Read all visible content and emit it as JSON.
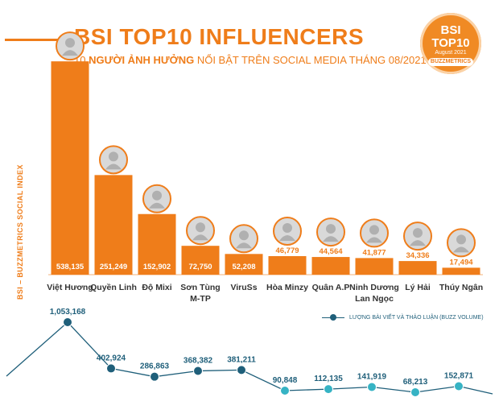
{
  "header": {
    "title": "BSI TOP10 INFLUENCERS",
    "subtitle_prefix": "10 ",
    "subtitle_bold": "NGƯỜI ẢNH HƯỞNG",
    "subtitle_suffix": " NỔI BẬT TRÊN SOCIAL MEDIA THÁNG 08/2021"
  },
  "badge": {
    "line1": "BSI",
    "line2": "TOP10",
    "line3": "August 2021",
    "line4": "BUZZMETRICS"
  },
  "legend": {
    "label": "LƯỢNG BÀI VIẾT VÀ THẢO LUẬN (BUZZ VOLUME)"
  },
  "colors": {
    "bar": "#ef7d1a",
    "line": "#1f5f7a",
    "last_marker": "#36b3c4"
  },
  "chart_data": [
    {
      "type": "bar",
      "title": "BSI TOP10 INFLUENCERS",
      "ylabel": "BSI – BUZZMETRICS SOCIAL INDEX",
      "categories": [
        [
          "Việt Hương"
        ],
        [
          "Quyền Linh"
        ],
        [
          "Độ Mixi"
        ],
        [
          "Sơn Tùng",
          "M-TP"
        ],
        [
          "ViruSs"
        ],
        [
          "Hòa Minzy"
        ],
        [
          "Quân A.P"
        ],
        [
          "Ninh Dương",
          "Lan Ngọc"
        ],
        [
          "Lý Hải"
        ],
        [
          "Thúy Ngân"
        ]
      ],
      "values": [
        538135,
        251249,
        152902,
        72750,
        52208,
        46779,
        44564,
        41877,
        34336,
        17494
      ],
      "value_labels": [
        "538,135",
        "251,249",
        "152,902",
        "72,750",
        "52,208",
        "46,779",
        "44,564",
        "41,877",
        "34,336",
        "17,494"
      ],
      "ylim": [
        0,
        600000
      ]
    },
    {
      "type": "line",
      "legend": "LƯỢNG BÀI VIẾT VÀ THẢO LUẬN (BUZZ VOLUME)",
      "values": [
        1053168,
        402924,
        286863,
        368382,
        381211,
        90848,
        112135,
        141919,
        68213,
        152871
      ],
      "value_labels": [
        "1,053,168",
        "402,924",
        "286,863",
        "368,382",
        "381,211",
        "90,848",
        "112,135",
        "141,919",
        "68,213",
        "152,871"
      ]
    }
  ]
}
